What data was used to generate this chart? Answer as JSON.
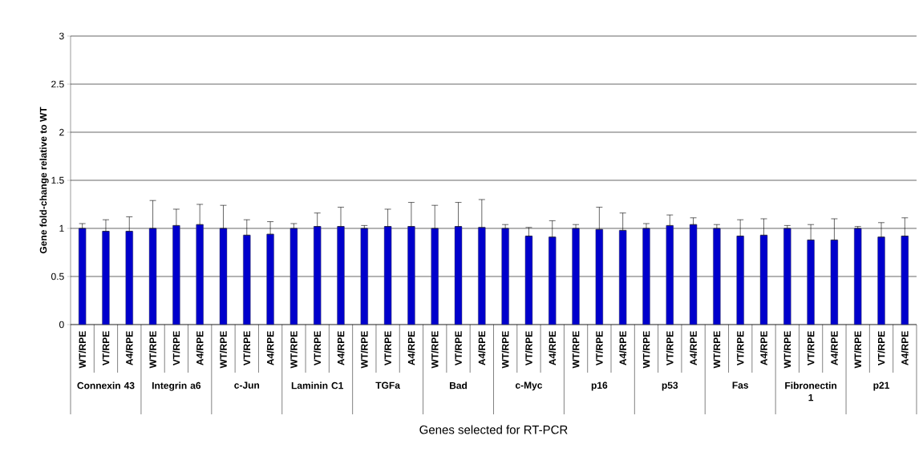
{
  "chart_data": {
    "type": "bar",
    "xlabel": "Genes selected for RT-PCR",
    "ylabel": "Gene fold-change relative to WT",
    "categories": [
      "WT/RPE",
      "VT/RPE",
      "A4/RPE",
      "WT/RPE",
      "VT/RPE",
      "A4/RPE",
      "WT/RPE",
      "VT/RPE",
      "A4/RPE",
      "WT/RPE",
      "VT/RPE",
      "A4/RPE",
      "WT/RPE",
      "VT/RPE",
      "A4/RPE",
      "WT/RPE",
      "VT/RPE",
      "A4/RPE",
      "WT/RPE",
      "VT/RPE",
      "A4/RPE",
      "WT/RPE",
      "VT/RPE",
      "A4/RPE",
      "WT/RPE",
      "VT/RPE",
      "A4/RPE",
      "WT/RPE",
      "VT/RPE",
      "A4/RPE",
      "WT/RPE",
      "VT/RPE",
      "A4/RPE",
      "WT/RPE",
      "VT/RPE",
      "A4/RPE"
    ],
    "values": [
      1.0,
      0.97,
      0.97,
      1.0,
      1.03,
      1.04,
      1.0,
      0.93,
      0.94,
      1.0,
      1.02,
      1.02,
      1.0,
      1.02,
      1.02,
      1.0,
      1.02,
      1.01,
      1.0,
      0.92,
      0.91,
      1.0,
      0.99,
      0.98,
      1.0,
      1.03,
      1.04,
      1.0,
      0.92,
      0.93,
      1.0,
      0.88,
      0.88,
      1.0,
      0.91,
      0.92
    ],
    "errors": [
      [
        1.0,
        1.05
      ],
      [
        0.97,
        1.09
      ],
      [
        0.97,
        1.12
      ],
      [
        1.0,
        1.29
      ],
      [
        1.03,
        1.2
      ],
      [
        1.04,
        1.25
      ],
      [
        1.0,
        1.24
      ],
      [
        0.93,
        1.09
      ],
      [
        0.94,
        1.07
      ],
      [
        1.0,
        1.05
      ],
      [
        1.02,
        1.16
      ],
      [
        1.02,
        1.22
      ],
      [
        1.0,
        1.03
      ],
      [
        1.02,
        1.2
      ],
      [
        1.02,
        1.27
      ],
      [
        1.0,
        1.24
      ],
      [
        1.02,
        1.27
      ],
      [
        1.01,
        1.3
      ],
      [
        1.0,
        1.04
      ],
      [
        0.92,
        1.01
      ],
      [
        0.91,
        1.08
      ],
      [
        1.0,
        1.04
      ],
      [
        0.99,
        1.22
      ],
      [
        0.98,
        1.16
      ],
      [
        1.0,
        1.05
      ],
      [
        1.03,
        1.14
      ],
      [
        1.04,
        1.11
      ],
      [
        1.0,
        1.04
      ],
      [
        0.92,
        1.09
      ],
      [
        0.93,
        1.1
      ],
      [
        1.0,
        1.03
      ],
      [
        0.88,
        1.04
      ],
      [
        0.88,
        1.1
      ],
      [
        1.0,
        1.02
      ],
      [
        0.91,
        1.06
      ],
      [
        0.92,
        1.11
      ]
    ],
    "color": "#0000cc",
    "ylim": [
      0,
      3
    ],
    "yticks": [
      0,
      0.5,
      1,
      1.5,
      2,
      2.5,
      3
    ],
    "grid": "y",
    "annotations": [
      "Connexin 43",
      "Integrin a6",
      "c-Jun",
      "Laminin C1",
      "TGFa",
      "Bad",
      "c-Myc",
      "p16",
      "p53",
      "Fas",
      "Fibronectin 1",
      "p21"
    ]
  }
}
